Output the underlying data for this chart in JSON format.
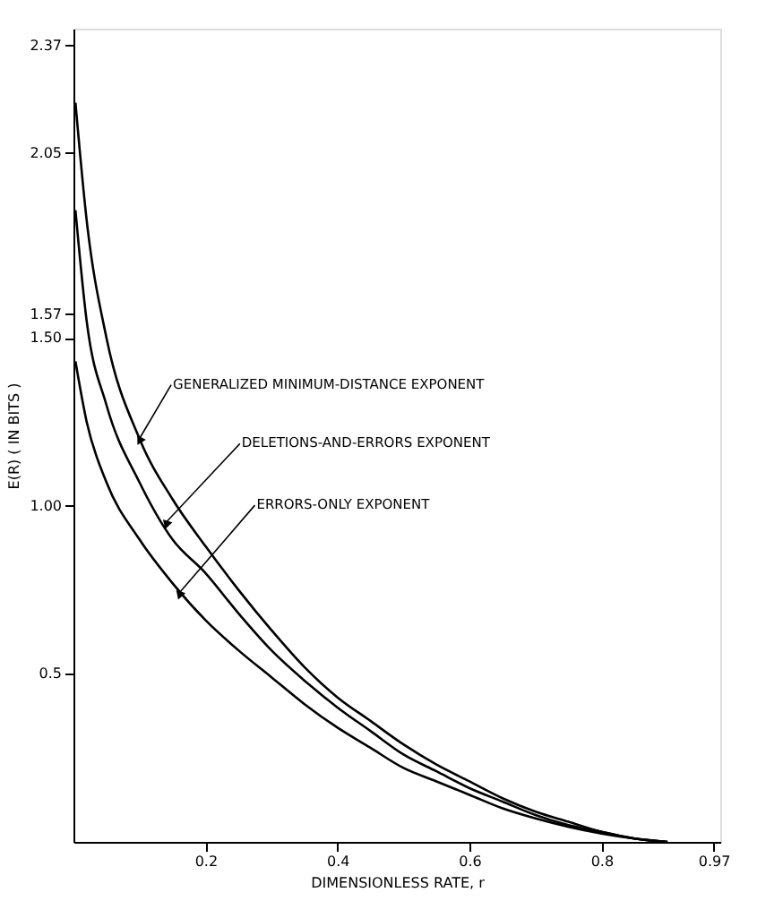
{
  "chart_data": {
    "type": "line",
    "xlabel": "DIMENSIONLESS RATE, r",
    "ylabel": "E(R)  ( IN BITS )",
    "x": [
      0.003,
      0.02,
      0.05,
      0.1,
      0.15,
      0.2,
      0.25,
      0.3,
      0.35,
      0.4,
      0.45,
      0.5,
      0.55,
      0.6,
      0.65,
      0.7,
      0.75,
      0.8,
      0.85,
      0.9
    ],
    "series": [
      {
        "color": "#000000",
        "values": [
          2.2,
          1.85,
          1.5,
          1.2,
          1.02,
          0.88,
          0.75,
          0.63,
          0.52,
          0.43,
          0.36,
          0.29,
          0.23,
          0.18,
          0.13,
          0.09,
          0.06,
          0.03,
          0.01,
          0
        ]
      },
      {
        "color": "#000000",
        "values": [
          1.88,
          1.55,
          1.3,
          1.07,
          0.9,
          0.8,
          0.68,
          0.57,
          0.48,
          0.4,
          0.33,
          0.26,
          0.21,
          0.16,
          0.12,
          0.08,
          0.05,
          0.03,
          0.01,
          0
        ]
      },
      {
        "color": "#000000",
        "values": [
          1.43,
          1.25,
          1.07,
          0.9,
          0.77,
          0.66,
          0.57,
          0.49,
          0.41,
          0.34,
          0.28,
          0.22,
          0.18,
          0.14,
          0.1,
          0.07,
          0.045,
          0.025,
          0.01,
          0
        ]
      }
    ],
    "annotations": [
      {
        "text": "GENERALIZED MINIMUM-DISTANCE EXPONENT",
        "x": 0.1,
        "y": 1.2
      },
      {
        "text": "DELETIONS-AND-ERRORS EXPONENT",
        "x": 0.14,
        "y": 0.95
      },
      {
        "text": "ERRORS-ONLY  EXPONENT",
        "x": 0.16,
        "y": 0.74
      }
    ],
    "xlim": [
      0,
      0.98
    ],
    "ylim": [
      0,
      2.42
    ],
    "xticks": [
      0.2,
      0.4,
      0.6,
      0.8,
      0.97
    ],
    "yticks": [
      {
        "value": 0.5,
        "label": "0.5"
      },
      {
        "value": 1,
        "label": "1.00"
      },
      {
        "value": 1.5,
        "label": "1.50"
      },
      1.57,
      2.05,
      2.37
    ],
    "grid": false,
    "marker": "none",
    "line_style": "solid"
  }
}
